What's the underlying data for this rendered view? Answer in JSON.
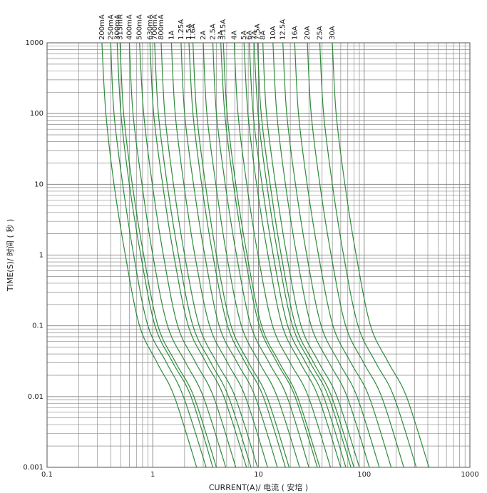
{
  "chart_data": {
    "type": "line",
    "title": "",
    "xlabel": "CURRENT(A)/ 电流 ( 安培 )",
    "ylabel": "TIME(S)/ 时间 ( 秒 )",
    "x_scale": "log",
    "y_scale": "log",
    "xlim": [
      0.1,
      1000
    ],
    "ylim": [
      0.001,
      1000
    ],
    "grid": true,
    "line_color": "#2e8b3a",
    "grid_color": "#8c8c8c",
    "x_ticks": [
      "0.1",
      "1",
      "10",
      "100",
      "1000"
    ],
    "y_ticks": [
      "0.001",
      "0.01",
      "0.1",
      "1",
      "10",
      "100",
      "1000"
    ],
    "x_tick_values": [
      0.1,
      1,
      10,
      100,
      1000
    ],
    "y_tick_values": [
      0.001,
      0.01,
      0.1,
      1,
      10,
      100,
      1000
    ],
    "series": [
      {
        "name": "200mA",
        "x": [
          0.33,
          0.36,
          0.43,
          0.55,
          0.75,
          1.1,
          1.6,
          2.6
        ],
        "y": [
          1000,
          100,
          10,
          1,
          0.1,
          0.03,
          0.01,
          0.001
        ]
      },
      {
        "name": "250mA",
        "x": [
          0.4,
          0.43,
          0.52,
          0.66,
          0.9,
          1.35,
          1.95,
          3.2
        ],
        "y": [
          1000,
          100,
          10,
          1,
          0.1,
          0.03,
          0.01,
          0.001
        ]
      },
      {
        "name": "300mA",
        "x": [
          0.46,
          0.5,
          0.6,
          0.77,
          1.05,
          1.55,
          2.3,
          3.7
        ],
        "y": [
          1000,
          100,
          10,
          1,
          0.1,
          0.03,
          0.01,
          0.001
        ]
      },
      {
        "name": "315mA",
        "x": [
          0.49,
          0.53,
          0.64,
          0.82,
          1.12,
          1.65,
          2.45,
          4.0
        ],
        "y": [
          1000,
          100,
          10,
          1,
          0.1,
          0.03,
          0.01,
          0.001
        ]
      },
      {
        "name": "400mA",
        "x": [
          0.6,
          0.65,
          0.79,
          1.0,
          1.38,
          2.05,
          3.0,
          4.9
        ],
        "y": [
          1000,
          100,
          10,
          1,
          0.1,
          0.03,
          0.01,
          0.001
        ]
      },
      {
        "name": "500mA",
        "x": [
          0.75,
          0.82,
          0.99,
          1.26,
          1.72,
          2.55,
          3.75,
          6.1
        ],
        "y": [
          1000,
          100,
          10,
          1,
          0.1,
          0.03,
          0.01,
          0.001
        ]
      },
      {
        "name": "630mA",
        "x": [
          0.94,
          1.02,
          1.24,
          1.58,
          2.17,
          3.2,
          4.7,
          7.7
        ],
        "y": [
          1000,
          100,
          10,
          1,
          0.1,
          0.03,
          0.01,
          0.001
        ]
      },
      {
        "name": "700mA",
        "x": [
          1.04,
          1.13,
          1.37,
          1.75,
          2.4,
          3.55,
          5.2,
          8.5
        ],
        "y": [
          1000,
          100,
          10,
          1,
          0.1,
          0.03,
          0.01,
          0.001
        ]
      },
      {
        "name": "800mA",
        "x": [
          1.2,
          1.3,
          1.57,
          2.0,
          2.75,
          4.05,
          6.0,
          9.8
        ],
        "y": [
          1000,
          100,
          10,
          1,
          0.1,
          0.03,
          0.01,
          0.001
        ]
      },
      {
        "name": "1A",
        "x": [
          1.5,
          1.63,
          1.97,
          2.5,
          3.45,
          5.1,
          7.5,
          12.2
        ],
        "y": [
          1000,
          100,
          10,
          1,
          0.1,
          0.03,
          0.01,
          0.001
        ]
      },
      {
        "name": "1.25A",
        "x": [
          1.85,
          2.0,
          2.43,
          3.1,
          4.25,
          6.3,
          9.3,
          15.1
        ],
        "y": [
          1000,
          100,
          10,
          1,
          0.1,
          0.03,
          0.01,
          0.001
        ]
      },
      {
        "name": "1.5A",
        "x": [
          2.2,
          2.4,
          2.9,
          3.7,
          5.1,
          7.5,
          11.1,
          18
        ],
        "y": [
          1000,
          100,
          10,
          1,
          0.1,
          0.03,
          0.01,
          0.001
        ]
      },
      {
        "name": "1.6A",
        "x": [
          2.4,
          2.6,
          3.15,
          4.0,
          5.5,
          8.1,
          12,
          19.5
        ],
        "y": [
          1000,
          100,
          10,
          1,
          0.1,
          0.03,
          0.01,
          0.001
        ]
      },
      {
        "name": "2A",
        "x": [
          3.0,
          3.25,
          3.95,
          5.0,
          6.9,
          10.2,
          15,
          24.5
        ],
        "y": [
          1000,
          100,
          10,
          1,
          0.1,
          0.03,
          0.01,
          0.001
        ]
      },
      {
        "name": "2.5A",
        "x": [
          3.7,
          4.0,
          4.85,
          6.2,
          8.5,
          12.6,
          18.6,
          30
        ],
        "y": [
          1000,
          100,
          10,
          1,
          0.1,
          0.03,
          0.01,
          0.001
        ]
      },
      {
        "name": "3A",
        "x": [
          4.4,
          4.8,
          5.8,
          7.4,
          10.2,
          15,
          22.2,
          36
        ],
        "y": [
          1000,
          100,
          10,
          1,
          0.1,
          0.03,
          0.01,
          0.001
        ]
      },
      {
        "name": "3.15A",
        "x": [
          4.65,
          5.05,
          6.1,
          7.8,
          10.7,
          15.8,
          23.3,
          38
        ],
        "y": [
          1000,
          100,
          10,
          1,
          0.1,
          0.03,
          0.01,
          0.001
        ]
      },
      {
        "name": "4A",
        "x": [
          5.9,
          6.4,
          7.75,
          9.9,
          13.6,
          20,
          29.6,
          48
        ],
        "y": [
          1000,
          100,
          10,
          1,
          0.1,
          0.03,
          0.01,
          0.001
        ]
      },
      {
        "name": "5A",
        "x": [
          7.3,
          7.95,
          9.6,
          12.3,
          16.8,
          24.9,
          36.7,
          60
        ],
        "y": [
          1000,
          100,
          10,
          1,
          0.1,
          0.03,
          0.01,
          0.001
        ]
      },
      {
        "name": "6A",
        "x": [
          8.2,
          8.9,
          10.8,
          13.8,
          18.9,
          28,
          41.3,
          67
        ],
        "y": [
          1000,
          100,
          10,
          1,
          0.1,
          0.03,
          0.01,
          0.001
        ]
      },
      {
        "name": "7A",
        "x": [
          9.1,
          9.9,
          12,
          15.3,
          21,
          31,
          45.8,
          75
        ],
        "y": [
          1000,
          100,
          10,
          1,
          0.1,
          0.03,
          0.01,
          0.001
        ]
      },
      {
        "name": "7.5A",
        "x": [
          9.8,
          10.6,
          12.9,
          16.4,
          22.5,
          33.3,
          49.1,
          80
        ],
        "y": [
          1000,
          100,
          10,
          1,
          0.1,
          0.03,
          0.01,
          0.001
        ]
      },
      {
        "name": "8A",
        "x": [
          11,
          11.9,
          14.5,
          18.5,
          25.3,
          37.4,
          55.2,
          90
        ],
        "y": [
          1000,
          100,
          10,
          1,
          0.1,
          0.03,
          0.01,
          0.001
        ]
      },
      {
        "name": "10A",
        "x": [
          13.7,
          14.9,
          18,
          23,
          31.5,
          46.6,
          68.8,
          112
        ],
        "y": [
          1000,
          100,
          10,
          1,
          0.1,
          0.03,
          0.01,
          0.001
        ]
      },
      {
        "name": "12.5A",
        "x": [
          17,
          18.5,
          22.4,
          28.6,
          39.2,
          58,
          85.6,
          139
        ],
        "y": [
          1000,
          100,
          10,
          1,
          0.1,
          0.03,
          0.01,
          0.001
        ]
      },
      {
        "name": "16A",
        "x": [
          22,
          23.9,
          28.9,
          37,
          50.7,
          75,
          111,
          180
        ],
        "y": [
          1000,
          100,
          10,
          1,
          0.1,
          0.03,
          0.01,
          0.001
        ]
      },
      {
        "name": "20A",
        "x": [
          29,
          31.5,
          38.1,
          48.7,
          66.8,
          98.8,
          146,
          237
        ],
        "y": [
          1000,
          100,
          10,
          1,
          0.1,
          0.03,
          0.01,
          0.001
        ]
      },
      {
        "name": "25A",
        "x": [
          38,
          41.3,
          50,
          63.8,
          87.5,
          129,
          191,
          311
        ],
        "y": [
          1000,
          100,
          10,
          1,
          0.1,
          0.03,
          0.01,
          0.001
        ]
      },
      {
        "name": "30A",
        "x": [
          50,
          54.3,
          65.7,
          84,
          115,
          170,
          251,
          410
        ],
        "y": [
          1000,
          100,
          10,
          1,
          0.1,
          0.03,
          0.01,
          0.001
        ]
      }
    ]
  }
}
